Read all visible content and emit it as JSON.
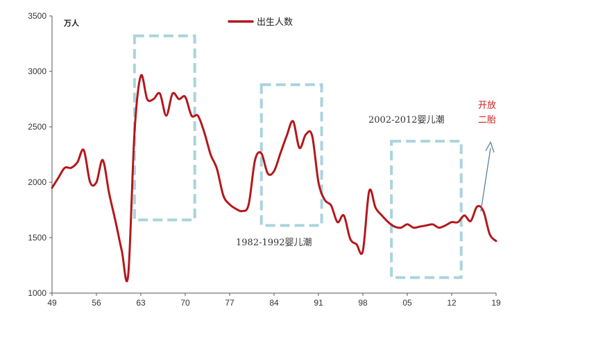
{
  "chart_data": {
    "type": "line",
    "unit_label": "万人",
    "legend": {
      "label": "出生人数",
      "position": "top-center"
    },
    "series": [
      {
        "name": "出生人数",
        "color": "#b3171c",
        "x": [
          1949,
          1950,
          1951,
          1952,
          1953,
          1954,
          1955,
          1956,
          1957,
          1958,
          1959,
          1960,
          1961,
          1962,
          1963,
          1964,
          1965,
          1966,
          1967,
          1968,
          1969,
          1970,
          1971,
          1972,
          1973,
          1974,
          1975,
          1976,
          1977,
          1978,
          1979,
          1980,
          1981,
          1982,
          1983,
          1984,
          1985,
          1986,
          1987,
          1988,
          1989,
          1990,
          1991,
          1992,
          1993,
          1994,
          1995,
          1996,
          1997,
          1998,
          1999,
          2000,
          2001,
          2002,
          2003,
          2004,
          2005,
          2006,
          2007,
          2008,
          2009,
          2010,
          2011,
          2012,
          2013,
          2014,
          2015,
          2016,
          2017,
          2018,
          2019
        ],
        "values": [
          1950,
          2040,
          2130,
          2130,
          2180,
          2290,
          2000,
          2000,
          2200,
          1900,
          1650,
          1380,
          1160,
          2450,
          2960,
          2750,
          2750,
          2800,
          2600,
          2800,
          2750,
          2770,
          2600,
          2600,
          2450,
          2250,
          2120,
          1880,
          1800,
          1760,
          1740,
          1800,
          2200,
          2260,
          2080,
          2100,
          2260,
          2420,
          2550,
          2310,
          2430,
          2420,
          2000,
          1840,
          1790,
          1640,
          1700,
          1490,
          1440,
          1380,
          1920,
          1770,
          1700,
          1640,
          1600,
          1590,
          1620,
          1590,
          1600,
          1610,
          1620,
          1590,
          1610,
          1640,
          1640,
          1700,
          1650,
          1780,
          1740,
          1530,
          1470
        ]
      }
    ],
    "xlim": [
      1949,
      2019
    ],
    "ylim": [
      1000,
      3500
    ],
    "x_ticks": [
      "49",
      "56",
      "63",
      "70",
      "77",
      "84",
      "91",
      "98",
      "05",
      "12",
      "19"
    ],
    "y_ticks": [
      "1000",
      "1500",
      "2000",
      "2500",
      "3000",
      "3500"
    ],
    "grid": false,
    "annotations": [
      {
        "text": "1982-1992婴儿潮",
        "x_range": [
          1982,
          1991.5
        ],
        "y_range": [
          1610,
          2880
        ]
      },
      {
        "text": "2002-2012婴儿潮",
        "x_range": [
          2002.5,
          2013.5
        ],
        "y_range": [
          1140,
          2370
        ]
      }
    ],
    "highlight_boxes": [
      {
        "x_range": [
          1962,
          1971.5
        ],
        "y_range": [
          1660,
          3320
        ]
      },
      {
        "x_range": [
          1982,
          1991.5
        ],
        "y_range": [
          1610,
          2880
        ]
      },
      {
        "x_range": [
          2002.5,
          2013.5
        ],
        "y_range": [
          1140,
          2370
        ]
      }
    ],
    "policy_note": {
      "lines": [
        "开放",
        "二胎"
      ],
      "color": "#cc1f1f"
    },
    "box_color": "#a9d4dc",
    "arrow_color": "#5b7fa6"
  }
}
